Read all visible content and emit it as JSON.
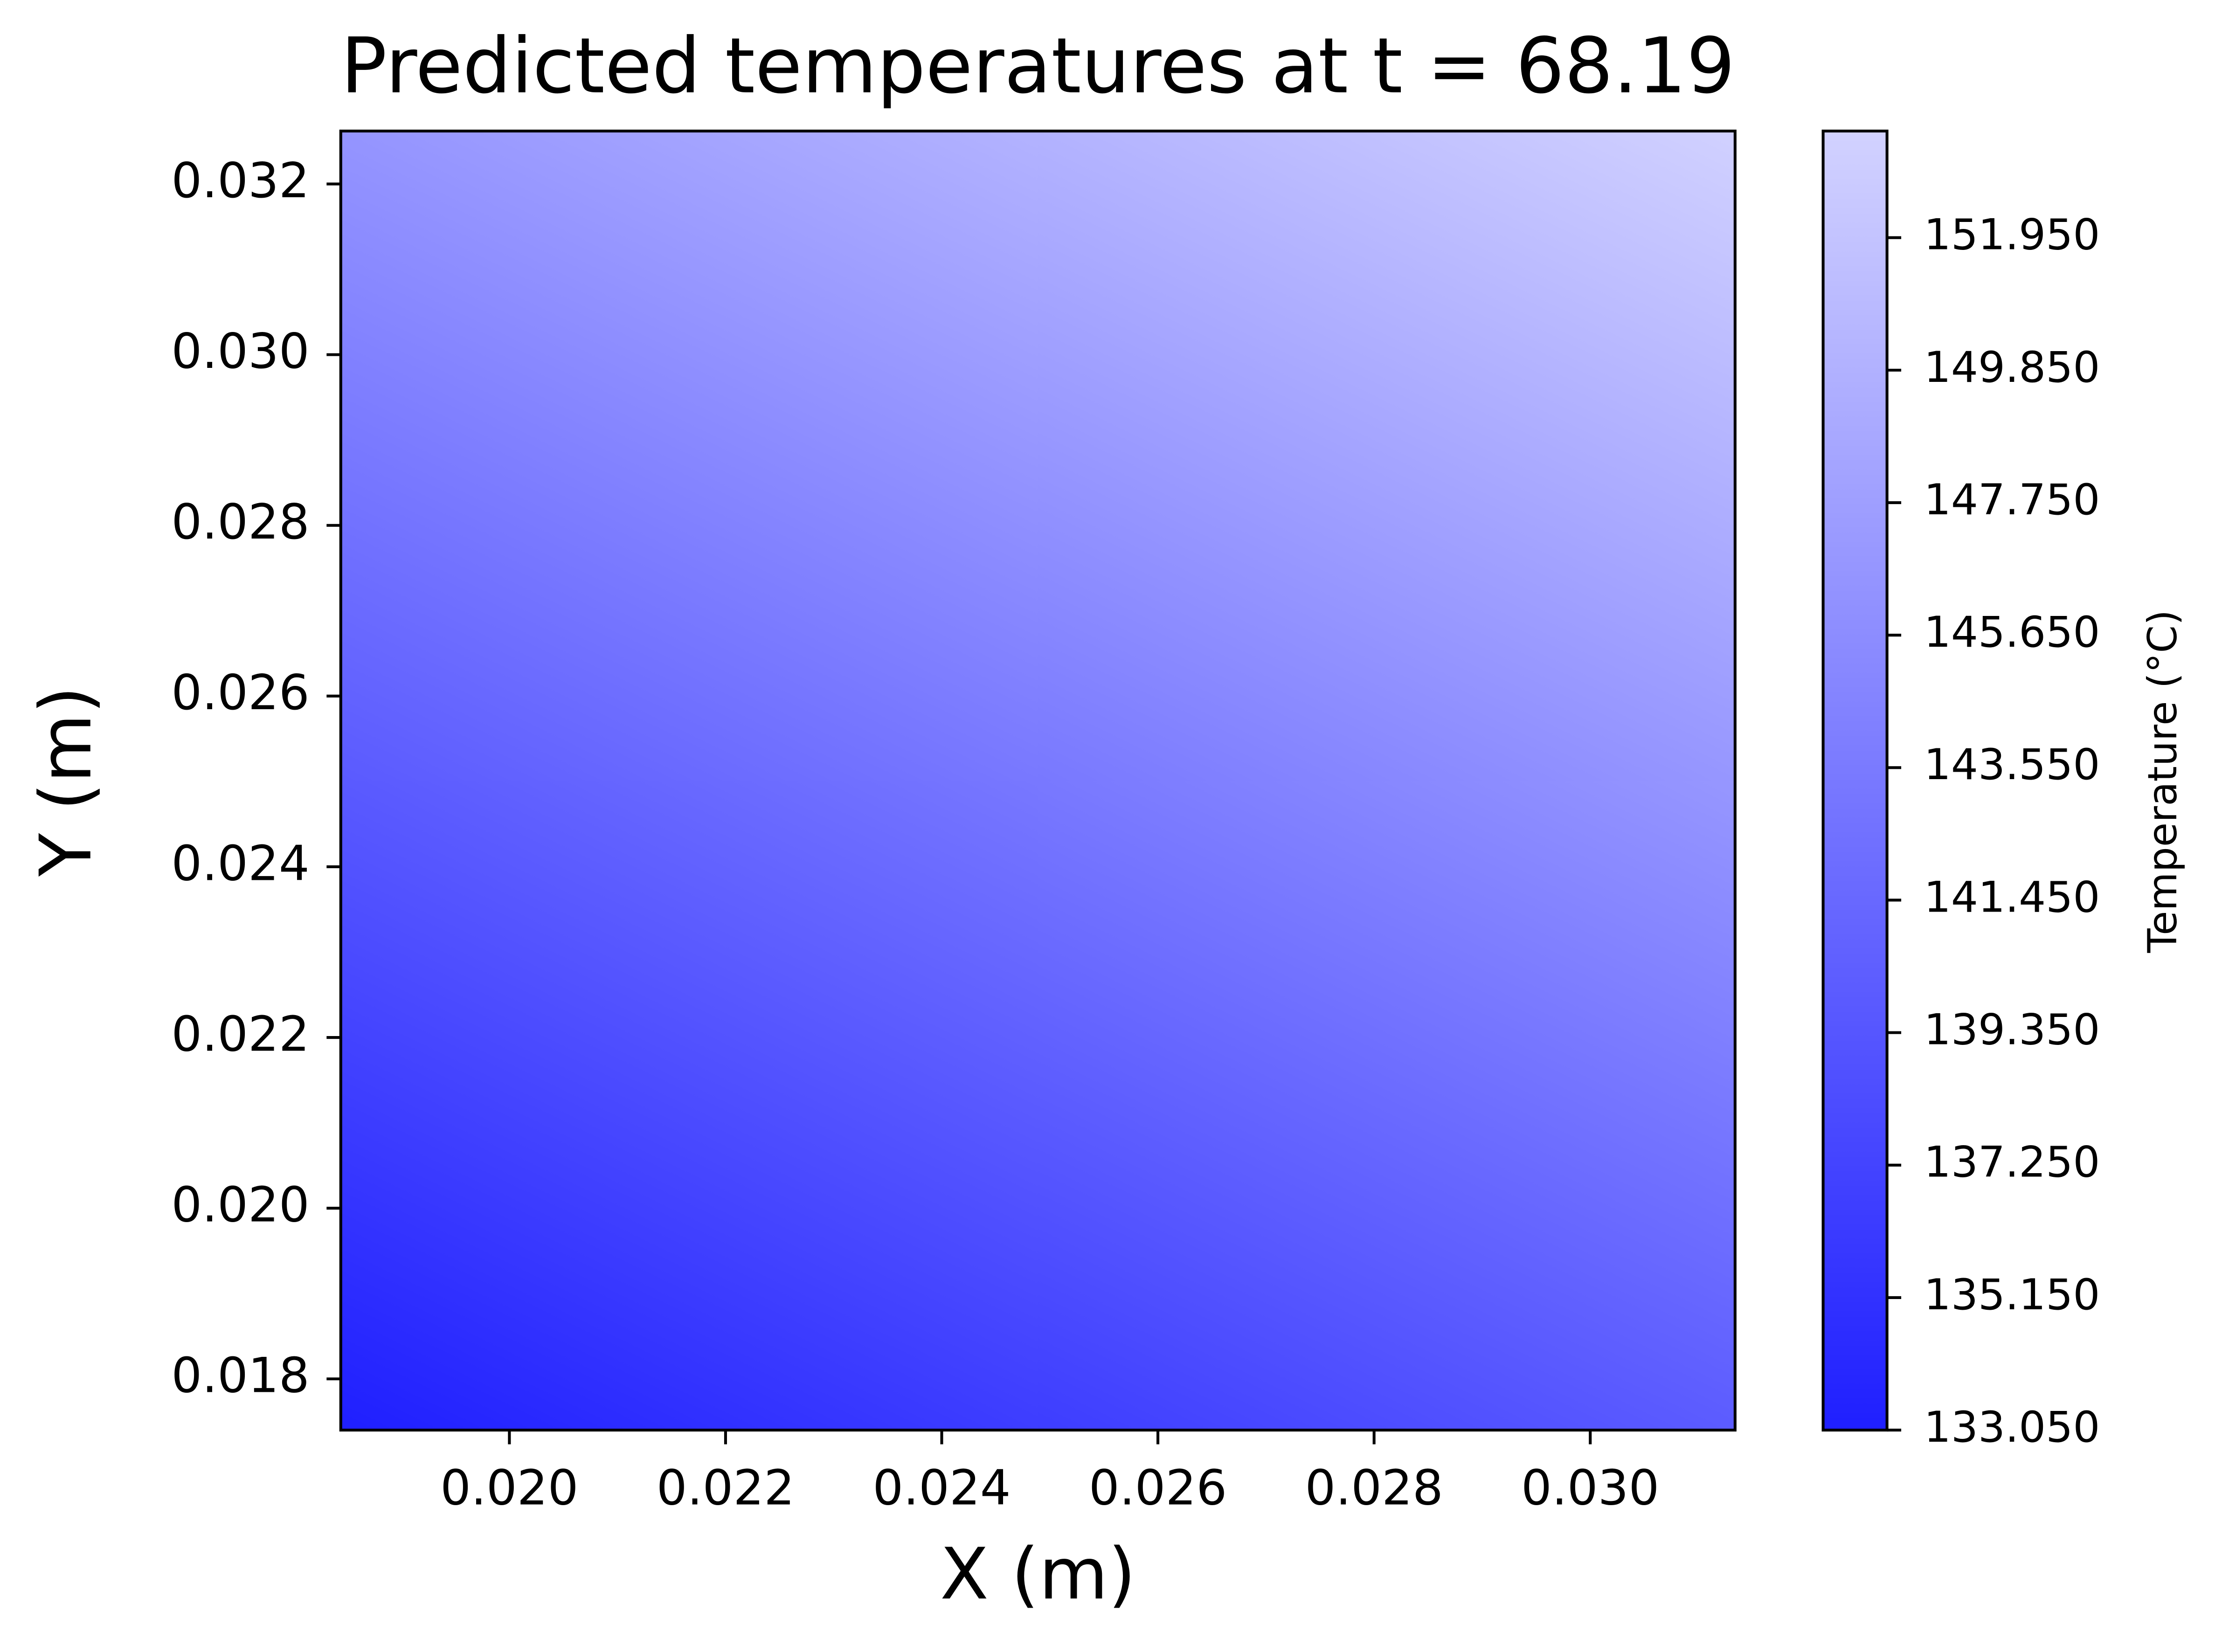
{
  "chart_data": {
    "type": "contour",
    "title": "Predicted temperatures at t = 68.19",
    "xlabel": "X (m)",
    "ylabel": "Y (m)",
    "colorbar_label": "Temperature (°C)",
    "x": [
      0.01844,
      0.02489,
      0.03134
    ],
    "y": [
      0.0174,
      0.02501,
      0.03262
    ],
    "z": [
      [
        133.05,
        136.55,
        140.05
      ],
      [
        139.8,
        143.3,
        146.8
      ],
      [
        146.55,
        150.05,
        153.55
      ]
    ],
    "xlim": [
      0.01844,
      0.03134
    ],
    "ylim": [
      0.0174,
      0.03262
    ],
    "xticks": [
      {
        "value": 0.02,
        "label": "0.020"
      },
      {
        "value": 0.022,
        "label": "0.022"
      },
      {
        "value": 0.024,
        "label": "0.024"
      },
      {
        "value": 0.026,
        "label": "0.026"
      },
      {
        "value": 0.028,
        "label": "0.028"
      },
      {
        "value": 0.03,
        "label": "0.030"
      }
    ],
    "yticks": [
      {
        "value": 0.018,
        "label": "0.018"
      },
      {
        "value": 0.02,
        "label": "0.020"
      },
      {
        "value": 0.022,
        "label": "0.022"
      },
      {
        "value": 0.024,
        "label": "0.024"
      },
      {
        "value": 0.026,
        "label": "0.026"
      },
      {
        "value": 0.028,
        "label": "0.028"
      },
      {
        "value": 0.03,
        "label": "0.030"
      },
      {
        "value": 0.032,
        "label": "0.032"
      }
    ],
    "zlim": [
      133.05,
      153.64
    ],
    "zticks": [
      {
        "value": 133.05,
        "label": "133.050"
      },
      {
        "value": 135.15,
        "label": "135.150"
      },
      {
        "value": 137.25,
        "label": "137.250"
      },
      {
        "value": 139.35,
        "label": "139.350"
      },
      {
        "value": 141.45,
        "label": "141.450"
      },
      {
        "value": 143.55,
        "label": "143.550"
      },
      {
        "value": 145.65,
        "label": "145.650"
      },
      {
        "value": 147.75,
        "label": "147.750"
      },
      {
        "value": 149.85,
        "label": "149.850"
      },
      {
        "value": 151.95,
        "label": "151.950"
      }
    ],
    "colormap": [
      "#1f1fff",
      "#d2d2ff"
    ]
  }
}
